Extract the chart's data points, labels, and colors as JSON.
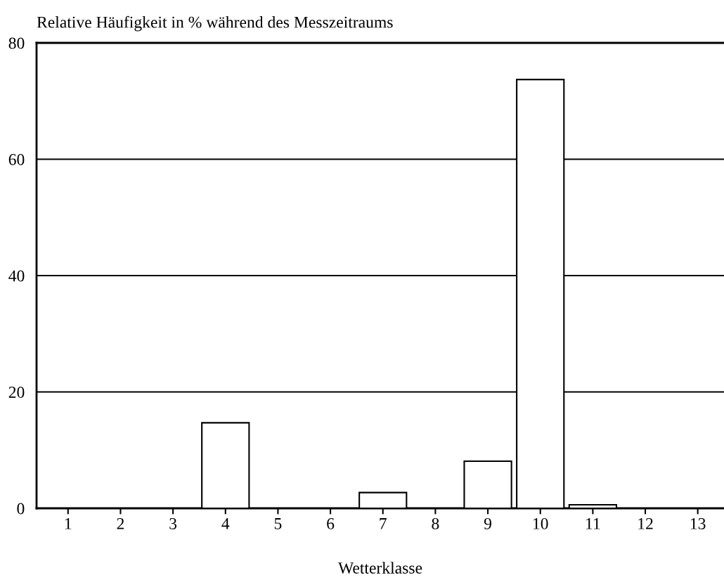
{
  "chart_data": {
    "type": "bar",
    "ylabel": "Relative Häufigkeit in % während des Messzeitraums",
    "xlabel": "Wetterklasse",
    "categories": [
      "1",
      "2",
      "3",
      "4",
      "5",
      "6",
      "7",
      "8",
      "9",
      "10",
      "11",
      "12",
      "13"
    ],
    "values": [
      0,
      0,
      0,
      14.7,
      0,
      0,
      2.7,
      0,
      8.1,
      73.7,
      0.6,
      0,
      0
    ],
    "colors": [
      "#000000",
      "#000000",
      "#000000",
      "#ffffff",
      "#000000",
      "#000000",
      "#ffffff",
      "#000000",
      "#ffffff",
      "#ffffff",
      "#ffffff",
      "#000000",
      "#000000"
    ],
    "ylim": [
      0,
      80
    ],
    "yticks": [
      0,
      20,
      40,
      60,
      80
    ],
    "grid": "y",
    "legend": false
  }
}
